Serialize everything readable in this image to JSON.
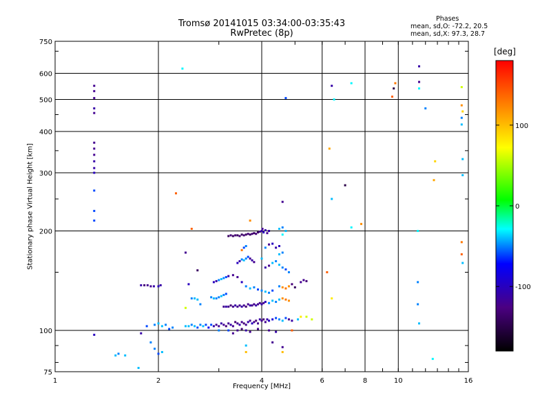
{
  "chart_data": {
    "type": "scatter",
    "title": "Tromsø 20141015 03:34:00-03:35:43",
    "subtitle": "RwPretec (8p)",
    "xlabel": "Frequency [MHz]",
    "ylabel": "Stationary phase Virtual Height [km]",
    "x_scale": "log",
    "y_scale": "log",
    "xlim": [
      1,
      16
    ],
    "ylim": [
      75,
      750
    ],
    "x_ticks": [
      1,
      2,
      4,
      6,
      8,
      10,
      16
    ],
    "x_tick_labels": [
      "1",
      "2",
      "4",
      "6",
      "8",
      "10",
      "16"
    ],
    "y_ticks": [
      75,
      100,
      200,
      300,
      400,
      500,
      600,
      750
    ],
    "y_tick_labels": [
      "75",
      "100",
      "200",
      "300",
      "400",
      "500",
      "600",
      "750"
    ],
    "grid": true,
    "legend_header": "Phases",
    "legend_lines": [
      "mean, sd,O: -72.2, 20.5",
      "mean, sd,X:  97.3, 28.7"
    ],
    "colorbar": {
      "label": "[deg]",
      "range": [
        -180,
        180
      ],
      "ticks": [
        100,
        0,
        -100
      ],
      "tick_labels": [
        "100",
        "0",
        "-100"
      ]
    },
    "points": [
      {
        "x": 1.3,
        "y": 550,
        "c": -120
      },
      {
        "x": 1.3,
        "y": 530,
        "c": -120
      },
      {
        "x": 1.3,
        "y": 505,
        "c": -120
      },
      {
        "x": 1.3,
        "y": 470,
        "c": -110
      },
      {
        "x": 1.3,
        "y": 455,
        "c": -120
      },
      {
        "x": 1.3,
        "y": 370,
        "c": -120
      },
      {
        "x": 1.3,
        "y": 355,
        "c": -120
      },
      {
        "x": 1.3,
        "y": 340,
        "c": -120
      },
      {
        "x": 1.3,
        "y": 325,
        "c": -110
      },
      {
        "x": 1.3,
        "y": 310,
        "c": -110
      },
      {
        "x": 1.3,
        "y": 300,
        "c": -100
      },
      {
        "x": 1.3,
        "y": 265,
        "c": -60
      },
      {
        "x": 1.3,
        "y": 230,
        "c": -60
      },
      {
        "x": 1.3,
        "y": 215,
        "c": -60
      },
      {
        "x": 1.3,
        "y": 97,
        "c": -100
      },
      {
        "x": 1.5,
        "y": 84,
        "c": -40
      },
      {
        "x": 1.53,
        "y": 85,
        "c": -50
      },
      {
        "x": 1.6,
        "y": 84,
        "c": -40
      },
      {
        "x": 1.75,
        "y": 77,
        "c": -40
      },
      {
        "x": 1.78,
        "y": 137,
        "c": -110
      },
      {
        "x": 1.82,
        "y": 137,
        "c": -130
      },
      {
        "x": 1.86,
        "y": 137,
        "c": -120
      },
      {
        "x": 1.9,
        "y": 136,
        "c": -120
      },
      {
        "x": 1.94,
        "y": 136,
        "c": -110
      },
      {
        "x": 2.0,
        "y": 136,
        "c": -100
      },
      {
        "x": 2.03,
        "y": 137,
        "c": -110
      },
      {
        "x": 1.78,
        "y": 98,
        "c": -110
      },
      {
        "x": 1.85,
        "y": 103,
        "c": -60
      },
      {
        "x": 1.9,
        "y": 92,
        "c": -50
      },
      {
        "x": 1.95,
        "y": 88,
        "c": -50
      },
      {
        "x": 2.0,
        "y": 85,
        "c": -60
      },
      {
        "x": 2.05,
        "y": 86,
        "c": -40
      },
      {
        "x": 1.95,
        "y": 104,
        "c": -50
      },
      {
        "x": 2.0,
        "y": 105,
        "c": -40
      },
      {
        "x": 2.05,
        "y": 103,
        "c": -40
      },
      {
        "x": 2.1,
        "y": 104,
        "c": -50
      },
      {
        "x": 2.15,
        "y": 101,
        "c": -60
      },
      {
        "x": 2.2,
        "y": 102,
        "c": -50
      },
      {
        "x": 2.35,
        "y": 620,
        "c": -30
      },
      {
        "x": 2.25,
        "y": 260,
        "c": 140
      },
      {
        "x": 2.4,
        "y": 172,
        "c": -120
      },
      {
        "x": 2.5,
        "y": 203,
        "c": 140
      },
      {
        "x": 2.6,
        "y": 152,
        "c": -140
      },
      {
        "x": 2.45,
        "y": 138,
        "c": -100
      },
      {
        "x": 2.5,
        "y": 125,
        "c": -50
      },
      {
        "x": 2.55,
        "y": 125,
        "c": -40
      },
      {
        "x": 2.6,
        "y": 124,
        "c": -40
      },
      {
        "x": 2.65,
        "y": 120,
        "c": -50
      },
      {
        "x": 2.4,
        "y": 117,
        "c": 60
      },
      {
        "x": 2.4,
        "y": 103,
        "c": -40
      },
      {
        "x": 2.45,
        "y": 103,
        "c": -40
      },
      {
        "x": 2.5,
        "y": 104,
        "c": -50
      },
      {
        "x": 2.55,
        "y": 103,
        "c": -40
      },
      {
        "x": 2.6,
        "y": 102,
        "c": -60
      },
      {
        "x": 2.65,
        "y": 104,
        "c": -50
      },
      {
        "x": 2.7,
        "y": 103,
        "c": -40
      },
      {
        "x": 2.75,
        "y": 104,
        "c": -60
      },
      {
        "x": 2.8,
        "y": 102,
        "c": -80
      },
      {
        "x": 2.85,
        "y": 104,
        "c": -60
      },
      {
        "x": 2.9,
        "y": 103,
        "c": -110
      },
      {
        "x": 2.95,
        "y": 104,
        "c": -120
      },
      {
        "x": 3.0,
        "y": 103,
        "c": -120
      },
      {
        "x": 3.05,
        "y": 105,
        "c": -110
      },
      {
        "x": 3.1,
        "y": 104,
        "c": -120
      },
      {
        "x": 3.15,
        "y": 103,
        "c": -130
      },
      {
        "x": 3.2,
        "y": 105,
        "c": -120
      },
      {
        "x": 3.25,
        "y": 104,
        "c": -110
      },
      {
        "x": 3.3,
        "y": 103,
        "c": -120
      },
      {
        "x": 3.35,
        "y": 106,
        "c": -130
      },
      {
        "x": 3.4,
        "y": 105,
        "c": -120
      },
      {
        "x": 3.45,
        "y": 104,
        "c": -110
      },
      {
        "x": 3.5,
        "y": 106,
        "c": -120
      },
      {
        "x": 3.55,
        "y": 105,
        "c": -130
      },
      {
        "x": 3.6,
        "y": 104,
        "c": -120
      },
      {
        "x": 3.65,
        "y": 106,
        "c": -110
      },
      {
        "x": 3.7,
        "y": 107,
        "c": -120
      },
      {
        "x": 3.75,
        "y": 105,
        "c": -100
      },
      {
        "x": 3.8,
        "y": 106,
        "c": -120
      },
      {
        "x": 3.85,
        "y": 107,
        "c": -130
      },
      {
        "x": 3.9,
        "y": 105,
        "c": -120
      },
      {
        "x": 3.95,
        "y": 108,
        "c": -110
      },
      {
        "x": 4.0,
        "y": 107,
        "c": -120
      },
      {
        "x": 4.05,
        "y": 108,
        "c": -130
      },
      {
        "x": 4.1,
        "y": 106,
        "c": -120
      },
      {
        "x": 4.15,
        "y": 108,
        "c": -110
      },
      {
        "x": 4.2,
        "y": 107,
        "c": -100
      },
      {
        "x": 4.3,
        "y": 108,
        "c": -90
      },
      {
        "x": 4.4,
        "y": 109,
        "c": -60
      },
      {
        "x": 4.5,
        "y": 108,
        "c": -50
      },
      {
        "x": 4.6,
        "y": 107,
        "c": -40
      },
      {
        "x": 4.7,
        "y": 109,
        "c": -60
      },
      {
        "x": 4.8,
        "y": 108,
        "c": -120
      },
      {
        "x": 4.9,
        "y": 107,
        "c": -110
      },
      {
        "x": 3.0,
        "y": 100,
        "c": -50
      },
      {
        "x": 3.2,
        "y": 100,
        "c": -60
      },
      {
        "x": 3.4,
        "y": 100,
        "c": -120
      },
      {
        "x": 3.6,
        "y": 100,
        "c": -110
      },
      {
        "x": 3.3,
        "y": 98,
        "c": -120
      },
      {
        "x": 3.7,
        "y": 99,
        "c": -120
      },
      {
        "x": 3.5,
        "y": 101,
        "c": -130
      },
      {
        "x": 3.9,
        "y": 101,
        "c": -120
      },
      {
        "x": 4.2,
        "y": 100,
        "c": -120
      },
      {
        "x": 4.4,
        "y": 99,
        "c": -110
      },
      {
        "x": 4.3,
        "y": 92,
        "c": -120
      },
      {
        "x": 4.6,
        "y": 89,
        "c": -120
      },
      {
        "x": 4.6,
        "y": 86,
        "c": 100
      },
      {
        "x": 3.6,
        "y": 86,
        "c": 100
      },
      {
        "x": 3.6,
        "y": 90,
        "c": -40
      },
      {
        "x": 4.9,
        "y": 100,
        "c": 140
      },
      {
        "x": 5.2,
        "y": 110,
        "c": 80
      },
      {
        "x": 5.4,
        "y": 110,
        "c": 60
      },
      {
        "x": 5.6,
        "y": 108,
        "c": 60
      },
      {
        "x": 5.1,
        "y": 108,
        "c": -40
      },
      {
        "x": 2.85,
        "y": 126,
        "c": -50
      },
      {
        "x": 2.9,
        "y": 125,
        "c": -40
      },
      {
        "x": 2.95,
        "y": 125,
        "c": -50
      },
      {
        "x": 3.0,
        "y": 126,
        "c": -50
      },
      {
        "x": 3.05,
        "y": 127,
        "c": -40
      },
      {
        "x": 3.1,
        "y": 128,
        "c": -50
      },
      {
        "x": 3.15,
        "y": 129,
        "c": -60
      },
      {
        "x": 3.1,
        "y": 118,
        "c": -120
      },
      {
        "x": 3.15,
        "y": 118,
        "c": -110
      },
      {
        "x": 3.2,
        "y": 118,
        "c": -120
      },
      {
        "x": 3.25,
        "y": 119,
        "c": -130
      },
      {
        "x": 3.3,
        "y": 118,
        "c": -120
      },
      {
        "x": 3.35,
        "y": 119,
        "c": -110
      },
      {
        "x": 3.4,
        "y": 118,
        "c": -120
      },
      {
        "x": 3.45,
        "y": 119,
        "c": -120
      },
      {
        "x": 3.5,
        "y": 118,
        "c": -110
      },
      {
        "x": 3.55,
        "y": 119,
        "c": -120
      },
      {
        "x": 3.6,
        "y": 118,
        "c": -130
      },
      {
        "x": 3.65,
        "y": 120,
        "c": -120
      },
      {
        "x": 3.7,
        "y": 119,
        "c": -110
      },
      {
        "x": 3.75,
        "y": 119,
        "c": -120
      },
      {
        "x": 3.8,
        "y": 120,
        "c": -120
      },
      {
        "x": 3.85,
        "y": 119,
        "c": -110
      },
      {
        "x": 3.9,
        "y": 120,
        "c": -120
      },
      {
        "x": 3.95,
        "y": 121,
        "c": -120
      },
      {
        "x": 4.0,
        "y": 120,
        "c": -110
      },
      {
        "x": 4.05,
        "y": 121,
        "c": -120
      },
      {
        "x": 4.1,
        "y": 122,
        "c": -100
      },
      {
        "x": 4.2,
        "y": 121,
        "c": -50
      },
      {
        "x": 4.3,
        "y": 123,
        "c": -40
      },
      {
        "x": 4.4,
        "y": 122,
        "c": -50
      },
      {
        "x": 4.5,
        "y": 124,
        "c": -40
      },
      {
        "x": 4.6,
        "y": 125,
        "c": 120
      },
      {
        "x": 4.7,
        "y": 124,
        "c": 130
      },
      {
        "x": 4.8,
        "y": 123,
        "c": 120
      },
      {
        "x": 2.9,
        "y": 140,
        "c": -100
      },
      {
        "x": 2.95,
        "y": 141,
        "c": -110
      },
      {
        "x": 3.0,
        "y": 142,
        "c": -50
      },
      {
        "x": 3.05,
        "y": 143,
        "c": -40
      },
      {
        "x": 3.1,
        "y": 144,
        "c": -50
      },
      {
        "x": 3.15,
        "y": 145,
        "c": -60
      },
      {
        "x": 3.2,
        "y": 146,
        "c": -110
      },
      {
        "x": 3.3,
        "y": 147,
        "c": -120
      },
      {
        "x": 3.4,
        "y": 145,
        "c": -120
      },
      {
        "x": 3.5,
        "y": 140,
        "c": -100
      },
      {
        "x": 3.6,
        "y": 136,
        "c": -50
      },
      {
        "x": 3.7,
        "y": 134,
        "c": -40
      },
      {
        "x": 3.8,
        "y": 135,
        "c": -50
      },
      {
        "x": 3.9,
        "y": 133,
        "c": -60
      },
      {
        "x": 4.0,
        "y": 132,
        "c": -50
      },
      {
        "x": 4.1,
        "y": 131,
        "c": -40
      },
      {
        "x": 4.2,
        "y": 130,
        "c": -50
      },
      {
        "x": 4.3,
        "y": 132,
        "c": -60
      },
      {
        "x": 4.5,
        "y": 136,
        "c": -50
      },
      {
        "x": 4.6,
        "y": 135,
        "c": 120
      },
      {
        "x": 4.7,
        "y": 134,
        "c": 130
      },
      {
        "x": 4.8,
        "y": 136,
        "c": 120
      },
      {
        "x": 4.9,
        "y": 138,
        "c": -130
      },
      {
        "x": 5.0,
        "y": 135,
        "c": -140
      },
      {
        "x": 5.2,
        "y": 140,
        "c": -120
      },
      {
        "x": 5.3,
        "y": 142,
        "c": -120
      },
      {
        "x": 5.4,
        "y": 141,
        "c": -130
      },
      {
        "x": 3.4,
        "y": 160,
        "c": -100
      },
      {
        "x": 3.45,
        "y": 162,
        "c": -110
      },
      {
        "x": 3.5,
        "y": 164,
        "c": -50
      },
      {
        "x": 3.55,
        "y": 163,
        "c": -40
      },
      {
        "x": 3.6,
        "y": 165,
        "c": -50
      },
      {
        "x": 3.65,
        "y": 167,
        "c": -60
      },
      {
        "x": 3.7,
        "y": 165,
        "c": -120
      },
      {
        "x": 3.75,
        "y": 163,
        "c": -110
      },
      {
        "x": 3.8,
        "y": 161,
        "c": -120
      },
      {
        "x": 3.5,
        "y": 175,
        "c": 130
      },
      {
        "x": 3.55,
        "y": 178,
        "c": -60
      },
      {
        "x": 3.6,
        "y": 180,
        "c": -50
      },
      {
        "x": 4.1,
        "y": 155,
        "c": -110
      },
      {
        "x": 4.2,
        "y": 157,
        "c": -120
      },
      {
        "x": 4.3,
        "y": 160,
        "c": -40
      },
      {
        "x": 4.4,
        "y": 162,
        "c": -50
      },
      {
        "x": 4.5,
        "y": 158,
        "c": -40
      },
      {
        "x": 4.6,
        "y": 155,
        "c": -50
      },
      {
        "x": 4.7,
        "y": 153,
        "c": -60
      },
      {
        "x": 4.8,
        "y": 150,
        "c": -50
      },
      {
        "x": 4.5,
        "y": 170,
        "c": -40
      },
      {
        "x": 4.6,
        "y": 172,
        "c": -50
      },
      {
        "x": 4.4,
        "y": 178,
        "c": -110
      },
      {
        "x": 4.5,
        "y": 180,
        "c": -100
      },
      {
        "x": 4.2,
        "y": 182,
        "c": -120
      },
      {
        "x": 4.3,
        "y": 183,
        "c": -100
      },
      {
        "x": 4.1,
        "y": 178,
        "c": -50
      },
      {
        "x": 4.0,
        "y": 165,
        "c": -40
      },
      {
        "x": 3.2,
        "y": 193,
        "c": -140
      },
      {
        "x": 3.25,
        "y": 194,
        "c": -130
      },
      {
        "x": 3.3,
        "y": 193,
        "c": -140
      },
      {
        "x": 3.35,
        "y": 194,
        "c": -130
      },
      {
        "x": 3.4,
        "y": 194,
        "c": -140
      },
      {
        "x": 3.45,
        "y": 193,
        "c": -130
      },
      {
        "x": 3.5,
        "y": 195,
        "c": -140
      },
      {
        "x": 3.55,
        "y": 194,
        "c": -130
      },
      {
        "x": 3.6,
        "y": 195,
        "c": -140
      },
      {
        "x": 3.65,
        "y": 196,
        "c": -130
      },
      {
        "x": 3.7,
        "y": 195,
        "c": -140
      },
      {
        "x": 3.75,
        "y": 196,
        "c": -130
      },
      {
        "x": 3.8,
        "y": 197,
        "c": -140
      },
      {
        "x": 3.85,
        "y": 196,
        "c": -130
      },
      {
        "x": 3.9,
        "y": 198,
        "c": -140
      },
      {
        "x": 3.95,
        "y": 199,
        "c": -120
      },
      {
        "x": 4.0,
        "y": 200,
        "c": -110
      },
      {
        "x": 4.02,
        "y": 203,
        "c": -120
      },
      {
        "x": 4.05,
        "y": 198,
        "c": -100
      },
      {
        "x": 4.1,
        "y": 201,
        "c": -110
      },
      {
        "x": 4.15,
        "y": 197,
        "c": -120
      },
      {
        "x": 4.2,
        "y": 200,
        "c": -110
      },
      {
        "x": 4.5,
        "y": 203,
        "c": -40
      },
      {
        "x": 4.6,
        "y": 205,
        "c": -50
      },
      {
        "x": 4.7,
        "y": 200,
        "c": -40
      },
      {
        "x": 4.6,
        "y": 195,
        "c": -30
      },
      {
        "x": 3.7,
        "y": 215,
        "c": 120
      },
      {
        "x": 4.6,
        "y": 245,
        "c": -120
      },
      {
        "x": 4.7,
        "y": 505,
        "c": -60
      },
      {
        "x": 6.2,
        "y": 150,
        "c": 140
      },
      {
        "x": 6.4,
        "y": 125,
        "c": 80
      },
      {
        "x": 6.3,
        "y": 355,
        "c": 110
      },
      {
        "x": 6.4,
        "y": 250,
        "c": -40
      },
      {
        "x": 6.4,
        "y": 550,
        "c": -110
      },
      {
        "x": 6.5,
        "y": 500,
        "c": -30
      },
      {
        "x": 7.0,
        "y": 275,
        "c": -150
      },
      {
        "x": 7.3,
        "y": 205,
        "c": -30
      },
      {
        "x": 7.3,
        "y": 560,
        "c": -30
      },
      {
        "x": 7.8,
        "y": 210,
        "c": 120
      },
      {
        "x": 9.6,
        "y": 510,
        "c": 140
      },
      {
        "x": 9.7,
        "y": 540,
        "c": -150
      },
      {
        "x": 9.8,
        "y": 560,
        "c": 130
      },
      {
        "x": 11.5,
        "y": 630,
        "c": -110
      },
      {
        "x": 11.5,
        "y": 565,
        "c": -120
      },
      {
        "x": 11.5,
        "y": 540,
        "c": -30
      },
      {
        "x": 11.4,
        "y": 200,
        "c": -30
      },
      {
        "x": 11.4,
        "y": 140,
        "c": -50
      },
      {
        "x": 11.4,
        "y": 120,
        "c": -50
      },
      {
        "x": 11.5,
        "y": 105,
        "c": -40
      },
      {
        "x": 12.0,
        "y": 470,
        "c": -50
      },
      {
        "x": 12.6,
        "y": 82,
        "c": -30
      },
      {
        "x": 12.7,
        "y": 285,
        "c": 110
      },
      {
        "x": 12.8,
        "y": 325,
        "c": 90
      },
      {
        "x": 15.3,
        "y": 545,
        "c": 60
      },
      {
        "x": 15.3,
        "y": 480,
        "c": 120
      },
      {
        "x": 15.4,
        "y": 460,
        "c": 90
      },
      {
        "x": 15.3,
        "y": 440,
        "c": -50
      },
      {
        "x": 15.3,
        "y": 420,
        "c": -40
      },
      {
        "x": 15.4,
        "y": 330,
        "c": -40
      },
      {
        "x": 15.4,
        "y": 295,
        "c": -40
      },
      {
        "x": 15.3,
        "y": 185,
        "c": 130
      },
      {
        "x": 15.3,
        "y": 170,
        "c": 140
      },
      {
        "x": 15.4,
        "y": 160,
        "c": -40
      }
    ]
  }
}
